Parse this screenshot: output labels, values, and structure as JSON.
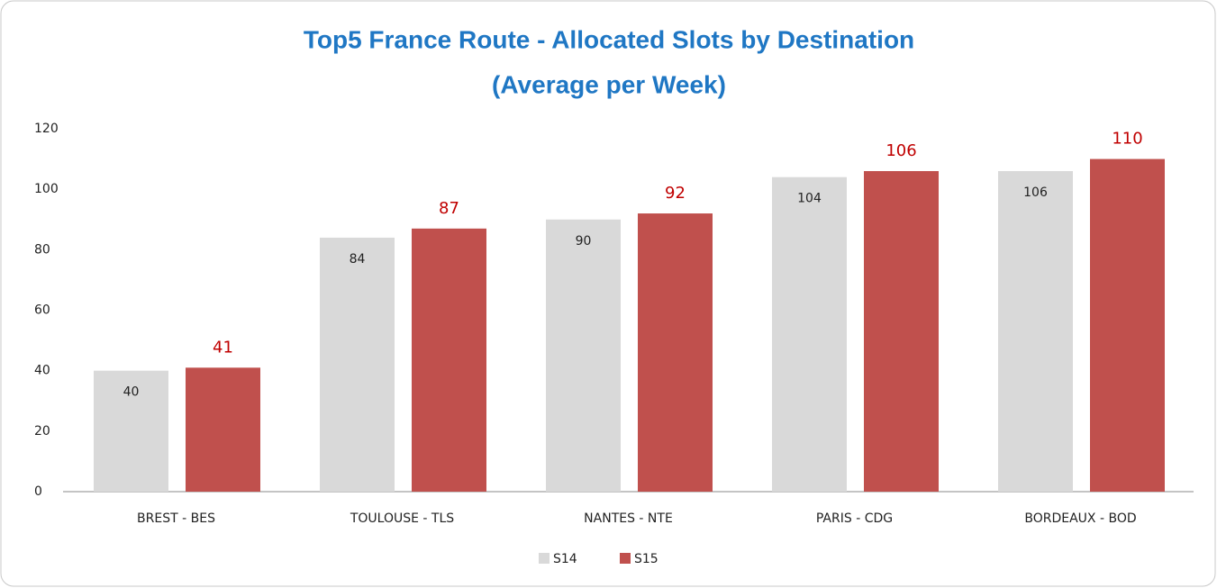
{
  "chart_data": {
    "type": "bar",
    "title": "Top5 France Route - Allocated Slots by Destination",
    "subtitle": "(Average per Week)",
    "categories": [
      "BREST - BES",
      "TOULOUSE - TLS",
      "NANTES - NTE",
      "PARIS - CDG",
      "BORDEAUX - BOD"
    ],
    "series": [
      {
        "name": "S14",
        "color": "#d9d9d9",
        "values": [
          40,
          84,
          90,
          104,
          106
        ]
      },
      {
        "name": "S15",
        "color": "#c0504d",
        "values": [
          41,
          87,
          92,
          106,
          110
        ]
      }
    ],
    "ylim": [
      0,
      120
    ],
    "yticks": [
      0,
      20,
      40,
      60,
      80,
      100,
      120
    ],
    "grid": false,
    "legend": "bottom"
  }
}
